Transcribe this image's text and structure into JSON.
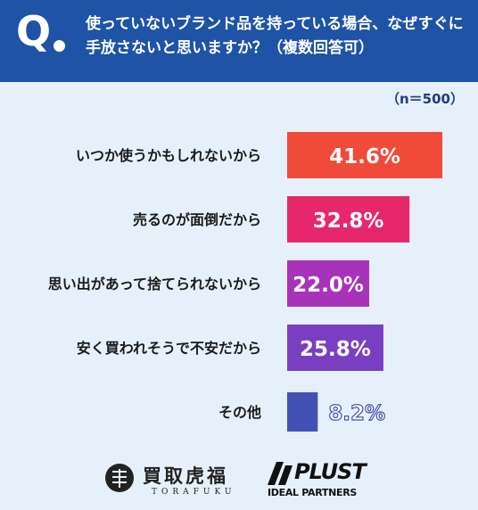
{
  "header": {
    "q_mark": "Q",
    "question": "使っていないブランド品を持っている場合、なぜすぐに手放さないと思いますか？（複数回答可）"
  },
  "sample_label": "（n＝500）",
  "chart_data": {
    "type": "bar",
    "orientation": "horizontal",
    "categories": [
      "いつか使うかもしれないから",
      "売るのが面倒だから",
      "思い出があって捨てられないから",
      "安く買われそうで不安だから",
      "その他"
    ],
    "values": [
      41.6,
      32.8,
      22.0,
      25.8,
      8.2
    ],
    "value_labels": [
      "41.6%",
      "32.8%",
      "22.0%",
      "25.8%",
      "8.2%"
    ],
    "unit": "%",
    "colors": [
      "#f04a3a",
      "#e6286b",
      "#a733b9",
      "#7a3fc0",
      "#4451b4"
    ],
    "xlim": [
      0,
      41.6
    ],
    "grid": false,
    "legend": "none"
  },
  "logos": {
    "torafuku": {
      "name": "買取虎福",
      "sub": "TORAFUKU"
    },
    "plust": {
      "name": "PLUST",
      "sub": "IDEAL PARTNERS"
    }
  }
}
